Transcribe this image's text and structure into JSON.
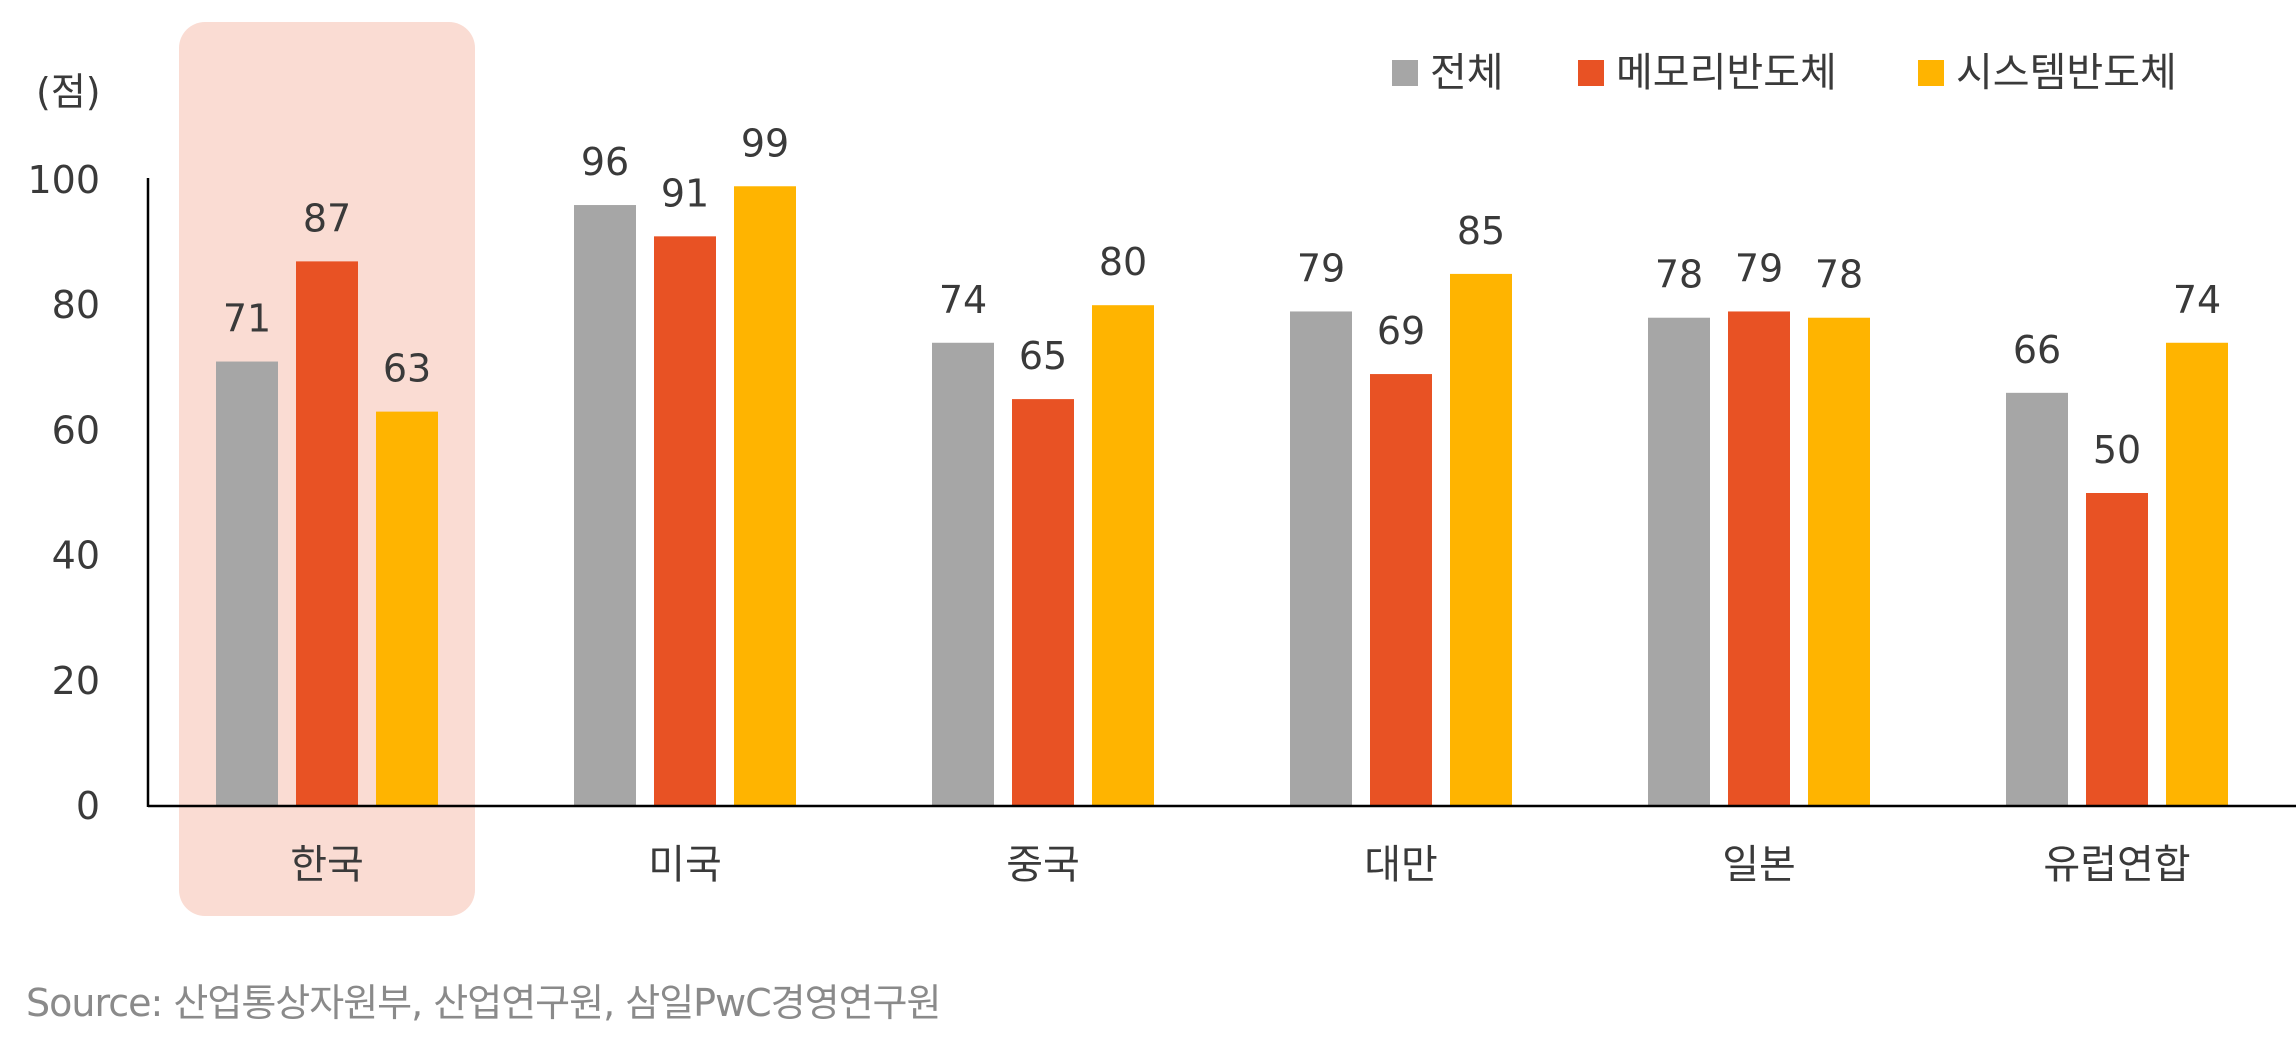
{
  "chart_data": {
    "type": "bar",
    "unit_label": "(점)",
    "categories": [
      "한국",
      "미국",
      "중국",
      "대만",
      "일본",
      "유럽연합"
    ],
    "series": [
      {
        "name": "전체",
        "color": "#a6a6a6",
        "values": [
          71,
          96,
          74,
          79,
          78,
          66
        ]
      },
      {
        "name": "메모리반도체",
        "color": "#e85224",
        "values": [
          87,
          91,
          65,
          69,
          79,
          50
        ]
      },
      {
        "name": "시스템반도체",
        "color": "#ffb400",
        "values": [
          63,
          99,
          80,
          85,
          78,
          74
        ]
      }
    ],
    "ylim": [
      0,
      100
    ],
    "yticks": [
      "0",
      "20",
      "40",
      "60",
      "80",
      "100"
    ],
    "highlight_category": "한국",
    "highlight_color": "#fadcd3",
    "grid": false,
    "legend_position": "top-right"
  },
  "source": "Source: 산업통상자원부, 산업연구원, 삼일PwC경영연구원"
}
